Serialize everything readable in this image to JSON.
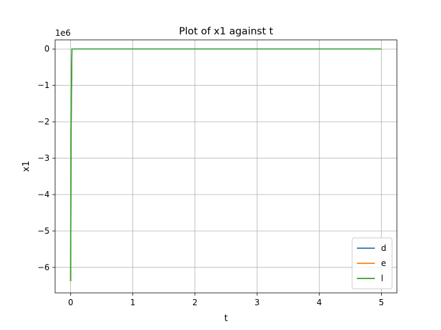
{
  "chart_data": {
    "type": "line",
    "title": "Plot of x1 against t",
    "xlabel": "t",
    "ylabel": "x1",
    "y_offset_label": "1e6",
    "y_scale": 1000000,
    "xlim": [
      -0.25,
      5.25
    ],
    "ylim": [
      -6.7,
      0.25
    ],
    "x_ticks": [
      0,
      1,
      2,
      3,
      4,
      5
    ],
    "x_tick_labels": [
      "0",
      "1",
      "2",
      "3",
      "4",
      "5"
    ],
    "y_ticks": [
      0,
      -1,
      -2,
      -3,
      -4,
      -5,
      -6
    ],
    "y_tick_labels": [
      "0",
      "−1",
      "−2",
      "−3",
      "−4",
      "−5",
      "−6"
    ],
    "grid": true,
    "legend_position": "bottom-right",
    "series": [
      {
        "name": "d",
        "color": "#1f77b4",
        "x": [
          0,
          0.005,
          0.02,
          5
        ],
        "y": [
          -6.38,
          -2.5,
          0,
          0
        ]
      },
      {
        "name": "e",
        "color": "#ff7f0e",
        "x": [
          0,
          0.005,
          0.02,
          5
        ],
        "y": [
          -6.38,
          -2.5,
          0,
          0
        ]
      },
      {
        "name": "l",
        "color": "#2ca02c",
        "x": [
          0,
          0.005,
          0.02,
          5
        ],
        "y": [
          -6.38,
          -2.5,
          0,
          0
        ]
      }
    ]
  }
}
